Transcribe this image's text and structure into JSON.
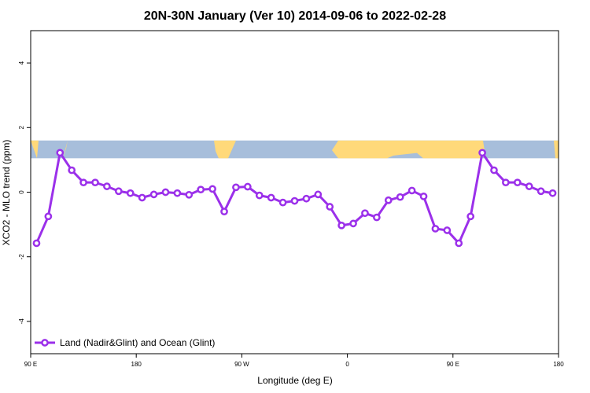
{
  "chart_data": {
    "type": "line",
    "title": "20N-30N January (Ver 10)   2014-09-06 to 2022-02-28",
    "xlabel": "Longitude (deg E)",
    "ylabel": "XCO2 - MLO trend (ppm)",
    "xlim": [
      90,
      540
    ],
    "ylim": [
      -5,
      5
    ],
    "x_ticks": [
      {
        "value": 90,
        "label": "90 E"
      },
      {
        "value": 180,
        "label": "180"
      },
      {
        "value": 270,
        "label": "90 W"
      },
      {
        "value": 360,
        "label": "0"
      },
      {
        "value": 450,
        "label": "90 E"
      },
      {
        "value": 540,
        "label": "180"
      }
    ],
    "y_ticks": [
      {
        "value": -4,
        "label": "-4"
      },
      {
        "value": -2,
        "label": "-2"
      },
      {
        "value": 0,
        "label": "0"
      },
      {
        "value": 2,
        "label": "2"
      },
      {
        "value": 4,
        "label": "4"
      }
    ],
    "grid": false,
    "legend_position": "bottom-left",
    "map_strip": {
      "y_range": [
        1.05,
        1.6
      ],
      "land_color": "#ffd97a",
      "ocean_color": "#a7bedb"
    },
    "series": [
      {
        "name": "Land (Nadir&Glint) and Ocean (Glint)",
        "color": "#9b30ea",
        "x": [
          95,
          105,
          115,
          125,
          135,
          145,
          155,
          165,
          175,
          185,
          195,
          205,
          215,
          225,
          235,
          245,
          255,
          265,
          275,
          285,
          295,
          305,
          315,
          325,
          335,
          345,
          355,
          365,
          375,
          385,
          395,
          405,
          415,
          425,
          435,
          445,
          455,
          465,
          475,
          485,
          495,
          505,
          515,
          525,
          535
        ],
        "y": [
          -1.58,
          -0.75,
          1.22,
          0.68,
          0.3,
          0.3,
          0.18,
          0.03,
          -0.03,
          -0.17,
          -0.07,
          0.0,
          -0.03,
          -0.08,
          0.08,
          0.1,
          -0.6,
          0.15,
          0.17,
          -0.1,
          -0.17,
          -0.32,
          -0.27,
          -0.2,
          -0.07,
          -0.45,
          -1.03,
          -0.97,
          -0.65,
          -0.78,
          -0.25,
          -0.15,
          0.05,
          -0.13,
          -1.13,
          -1.18,
          -1.58,
          -0.75,
          1.22,
          0.68,
          0.3,
          0.3,
          0.18,
          0.03,
          -0.03
        ]
      }
    ]
  }
}
